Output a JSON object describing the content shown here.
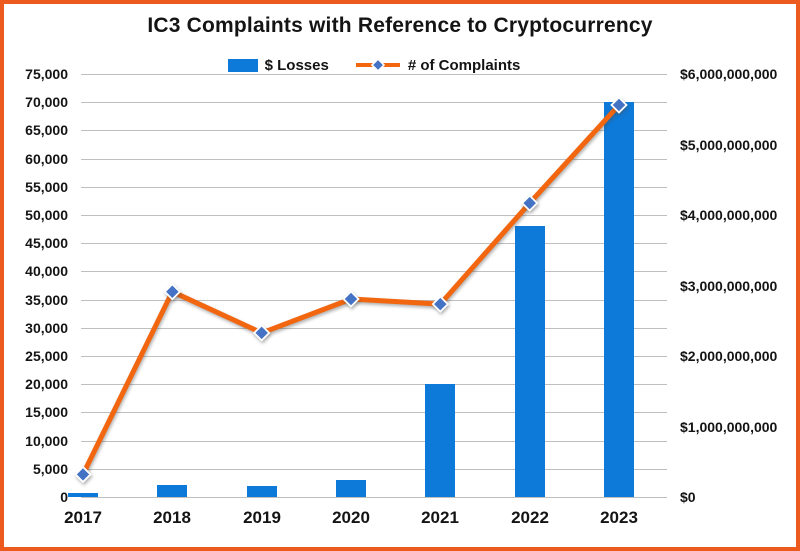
{
  "window": {
    "title": "IC3 Complaints with Reference to Cryptocurrency",
    "frame_border_color": "#ed5a1e",
    "background_color": "#ffffff"
  },
  "legend": {
    "losses_label": "$ Losses",
    "complaints_label": "# of Complaints"
  },
  "colors": {
    "bar_blue": "#0d79d8",
    "line_orange": "#f2660f",
    "marker_blue_fill": "#4472c4",
    "marker_outline": "#ffffff",
    "gridline_gray": "#bfbfbf",
    "text_black": "#141414",
    "frame_orange": "#ed5a1e"
  },
  "chart_data": {
    "type": "bar",
    "subtype": "combo-bar-line",
    "title": "IC3 Complaints with Reference to Cryptocurrency",
    "categories": [
      "2017",
      "2018",
      "2019",
      "2020",
      "2021",
      "2022",
      "2023"
    ],
    "series": [
      {
        "name": "$ Losses",
        "type": "bar",
        "axis": "right",
        "color": "#0d79d8",
        "values": [
          60000000,
          175000000,
          160000000,
          245000000,
          1600000000,
          3850000000,
          5600000000
        ]
      },
      {
        "name": "# of Complaints",
        "type": "line",
        "axis": "left",
        "color": "#f2660f",
        "marker": "diamond",
        "marker_color": "#4472c4",
        "values": [
          4000,
          36400,
          29100,
          35100,
          34200,
          52100,
          69500
        ]
      }
    ],
    "left_axis": {
      "min": 0,
      "max": 75000,
      "step": 5000,
      "tick_labels": [
        "0",
        "5,000",
        "10,000",
        "15,000",
        "20,000",
        "25,000",
        "30,000",
        "35,000",
        "40,000",
        "45,000",
        "50,000",
        "55,000",
        "60,000",
        "65,000",
        "70,000",
        "75,000"
      ]
    },
    "right_axis": {
      "min": 0,
      "max": 6000000000,
      "step": 1000000000,
      "tick_labels": [
        "$0",
        "$1,000,000,000",
        "$2,000,000,000",
        "$3,000,000,000",
        "$4,000,000,000",
        "$5,000,000,000",
        "$6,000,000,000"
      ]
    },
    "grid": true,
    "legend_position": "top-center"
  }
}
